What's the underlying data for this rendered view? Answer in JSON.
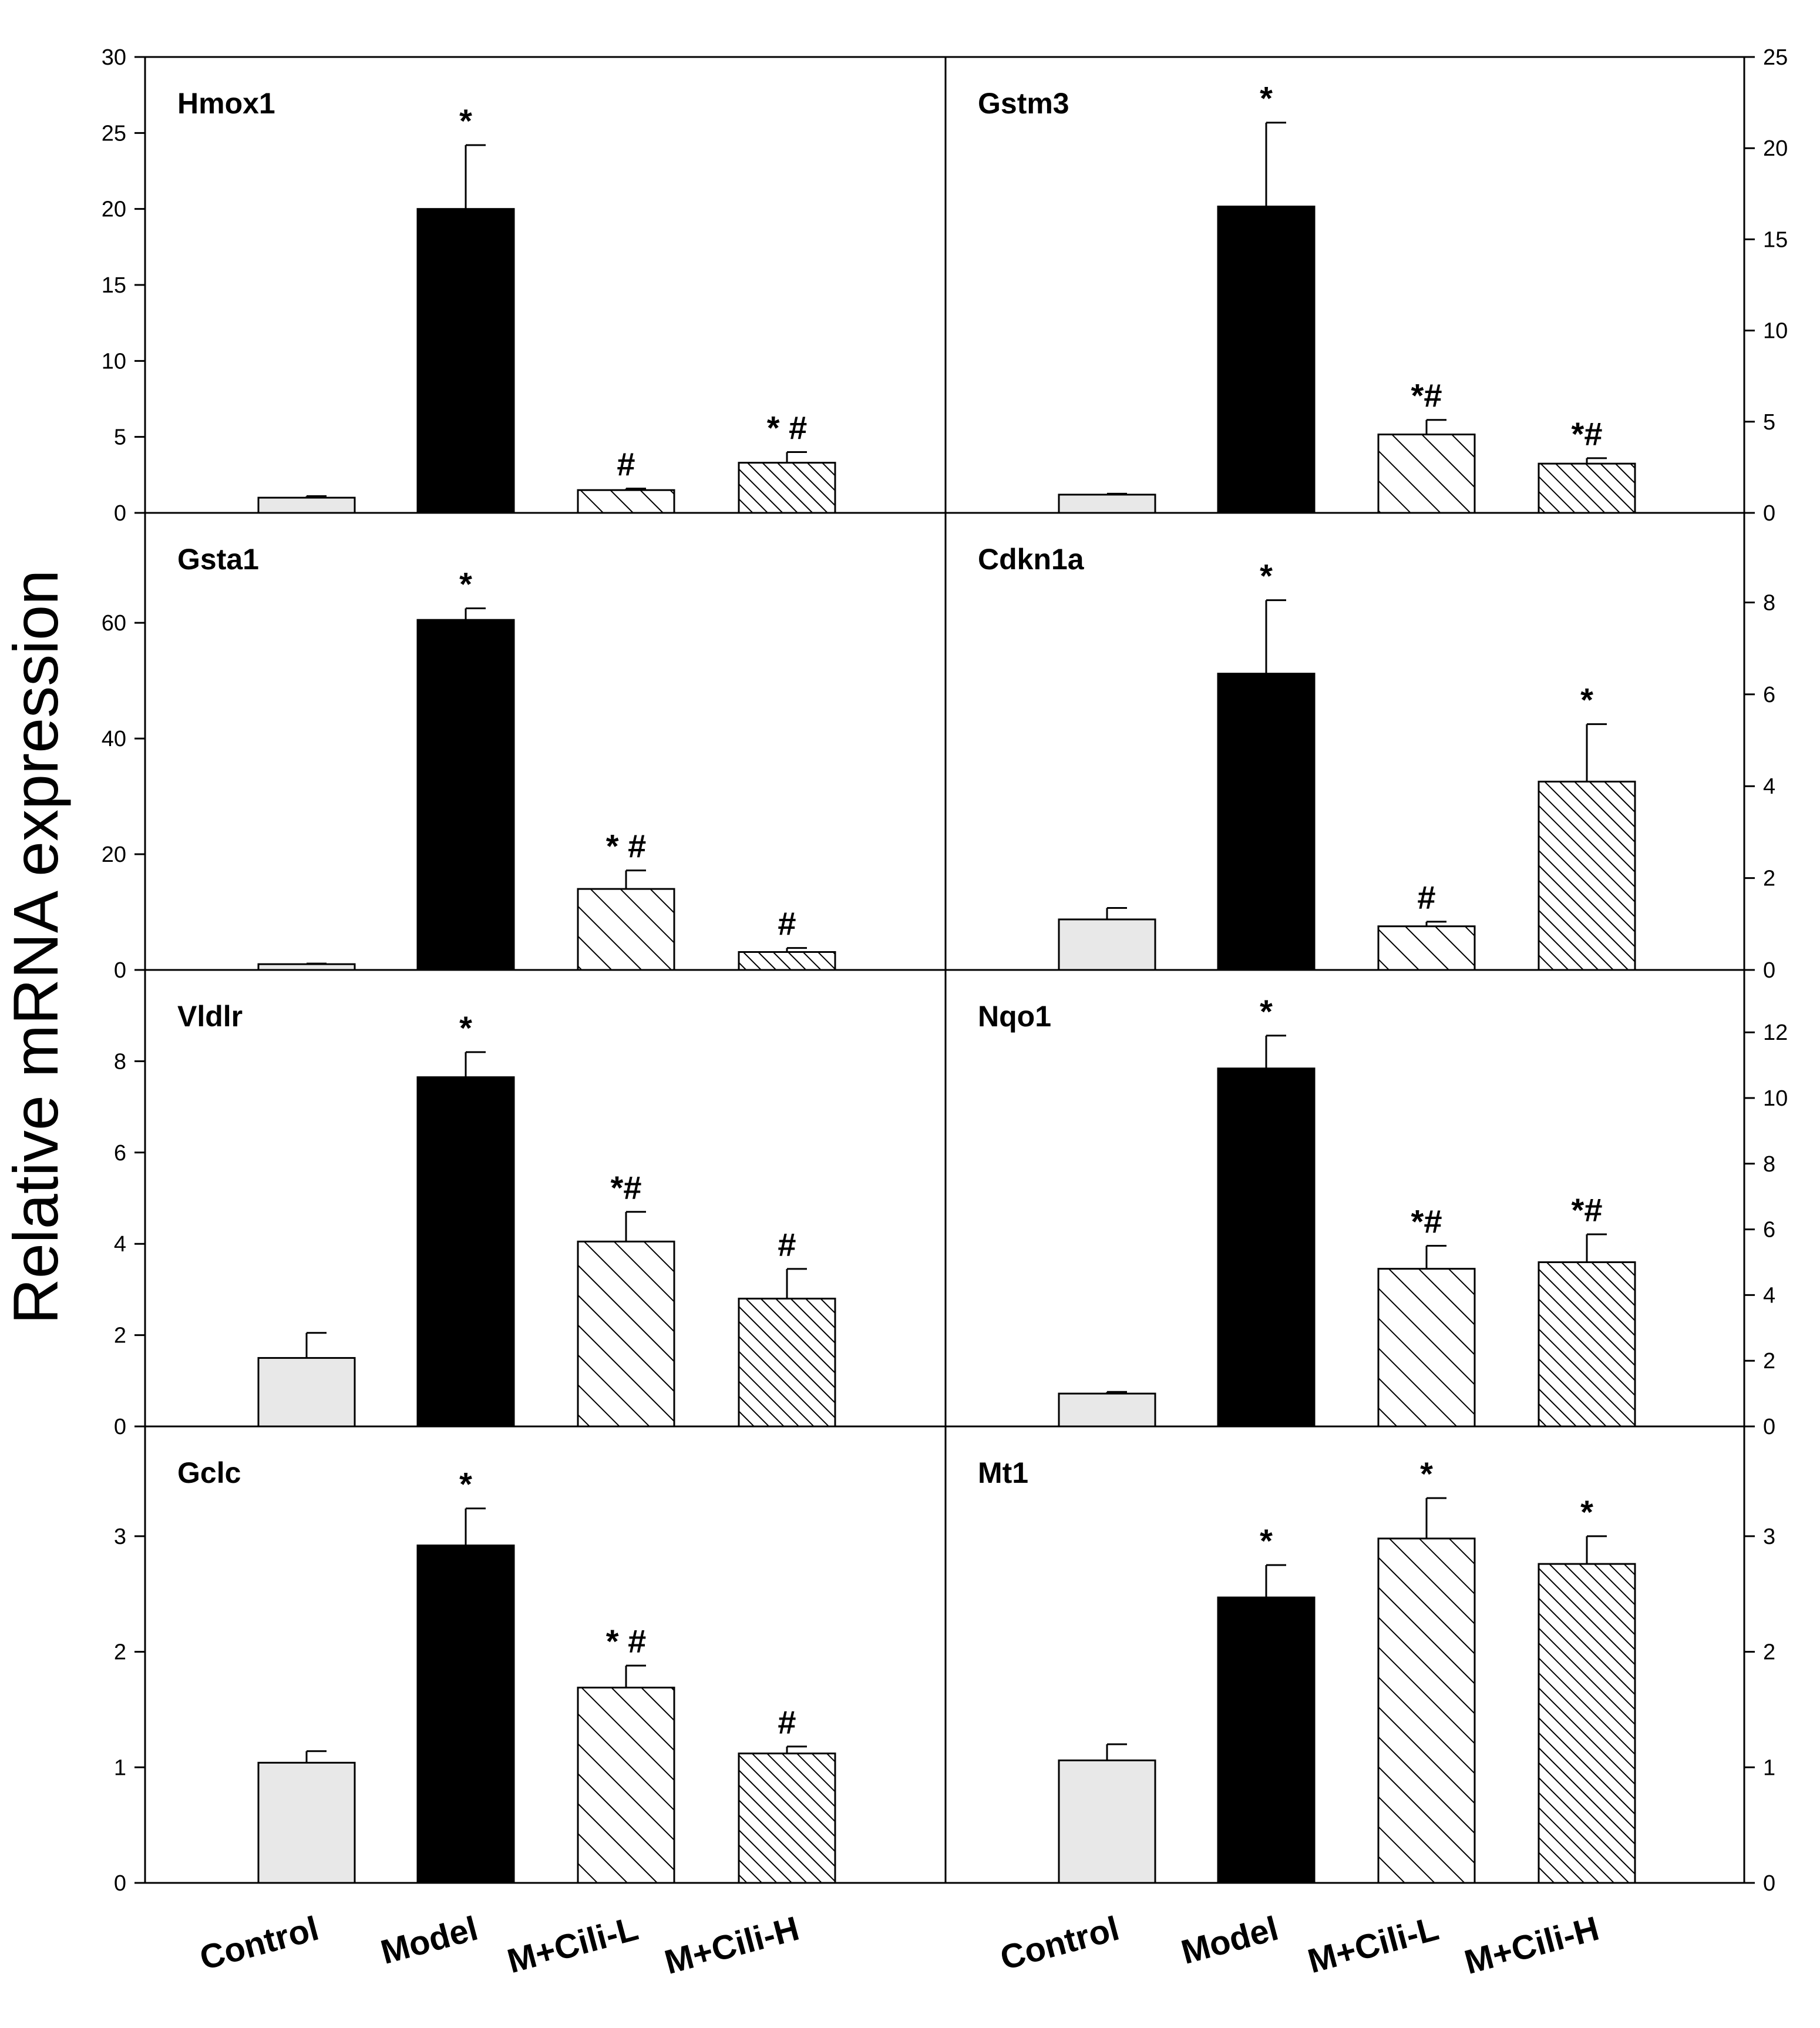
{
  "ylabel": "Relative mRNA expression",
  "categories": [
    "Control",
    "Model",
    "M+Cili-L",
    "M+Cili-H"
  ],
  "colors": {
    "control_fill": "#e8e8e8",
    "model_fill": "#000000",
    "stroke": "#000000",
    "background": "#ffffff"
  },
  "chart_data": [
    {
      "type": "bar",
      "title": "Hmox1",
      "position": "top-left",
      "ylim": [
        0,
        30
      ],
      "ticks": [
        0,
        5,
        10,
        15,
        20,
        25,
        30
      ],
      "categories": [
        "Control",
        "Model",
        "M+Cili-L",
        "M+Cili-H"
      ],
      "values": [
        1.0,
        20.0,
        1.5,
        3.3
      ],
      "errors": [
        0.1,
        4.2,
        0.1,
        0.7
      ],
      "annotations": [
        "",
        "*",
        "#",
        "* #"
      ]
    },
    {
      "type": "bar",
      "title": "Gstm3",
      "position": "top-right",
      "ylim": [
        0,
        25
      ],
      "ticks": [
        0,
        5,
        10,
        15,
        20,
        25
      ],
      "categories": [
        "Control",
        "Model",
        "M+Cili-L",
        "M+Cili-H"
      ],
      "values": [
        1.0,
        16.8,
        4.3,
        2.7
      ],
      "errors": [
        0.05,
        4.6,
        0.8,
        0.3
      ],
      "annotations": [
        "",
        "*",
        "*#",
        "*#"
      ]
    },
    {
      "type": "bar",
      "title": "Gsta1",
      "position": "second-left",
      "ylim": [
        0,
        79
      ],
      "ticks": [
        0,
        20,
        40,
        60
      ],
      "categories": [
        "Control",
        "Model",
        "M+Cili-L",
        "M+Cili-H"
      ],
      "values": [
        1.0,
        60.5,
        14.0,
        3.1
      ],
      "errors": [
        0.1,
        2.0,
        3.2,
        0.7
      ],
      "annotations": [
        "",
        "*",
        "* #",
        "#"
      ]
    },
    {
      "type": "bar",
      "title": "Cdkn1a",
      "position": "second-right",
      "ylim": [
        0,
        9.95
      ],
      "ticks": [
        0,
        2,
        4,
        6,
        8
      ],
      "categories": [
        "Control",
        "Model",
        "M+Cili-L",
        "M+Cili-H"
      ],
      "values": [
        1.1,
        6.45,
        0.95,
        4.1
      ],
      "errors": [
        0.25,
        1.6,
        0.1,
        1.25
      ],
      "annotations": [
        "",
        "*",
        "#",
        "*"
      ]
    },
    {
      "type": "bar",
      "title": "Vldlr",
      "position": "third-left",
      "ylim": [
        0,
        10
      ],
      "ticks": [
        0,
        2,
        4,
        6,
        8
      ],
      "categories": [
        "Control",
        "Model",
        "M+Cili-L",
        "M+Cili-H"
      ],
      "values": [
        1.5,
        7.65,
        4.05,
        2.8
      ],
      "errors": [
        0.55,
        0.55,
        0.65,
        0.65
      ],
      "annotations": [
        "",
        "*",
        "*#",
        "#"
      ]
    },
    {
      "type": "bar",
      "title": "Nqo1",
      "position": "third-right",
      "ylim": [
        0,
        13.9
      ],
      "ticks": [
        0,
        2,
        4,
        6,
        8,
        10,
        12
      ],
      "categories": [
        "Control",
        "Model",
        "M+Cili-L",
        "M+Cili-H"
      ],
      "values": [
        1.0,
        10.9,
        4.8,
        5.0
      ],
      "errors": [
        0.05,
        1.0,
        0.7,
        0.85
      ],
      "annotations": [
        "",
        "*",
        "*#",
        "*#"
      ]
    },
    {
      "type": "bar",
      "title": "Gclc",
      "position": "bottom-left",
      "ylim": [
        0,
        3.95
      ],
      "ticks": [
        0,
        1,
        2,
        3
      ],
      "categories": [
        "Control",
        "Model",
        "M+Cili-L",
        "M+Cili-H"
      ],
      "values": [
        1.04,
        2.92,
        1.69,
        1.12
      ],
      "errors": [
        0.1,
        0.32,
        0.19,
        0.06
      ],
      "annotations": [
        "",
        "*",
        "* #",
        "#"
      ]
    },
    {
      "type": "bar",
      "title": "Mt1",
      "position": "bottom-right",
      "ylim": [
        0,
        3.95
      ],
      "ticks": [
        0,
        1,
        2,
        3
      ],
      "categories": [
        "Control",
        "Model",
        "M+Cili-L",
        "M+Cili-H"
      ],
      "values": [
        1.06,
        2.47,
        2.98,
        2.76
      ],
      "errors": [
        0.14,
        0.28,
        0.35,
        0.24
      ],
      "annotations": [
        "",
        "*",
        "*",
        "*"
      ]
    }
  ]
}
